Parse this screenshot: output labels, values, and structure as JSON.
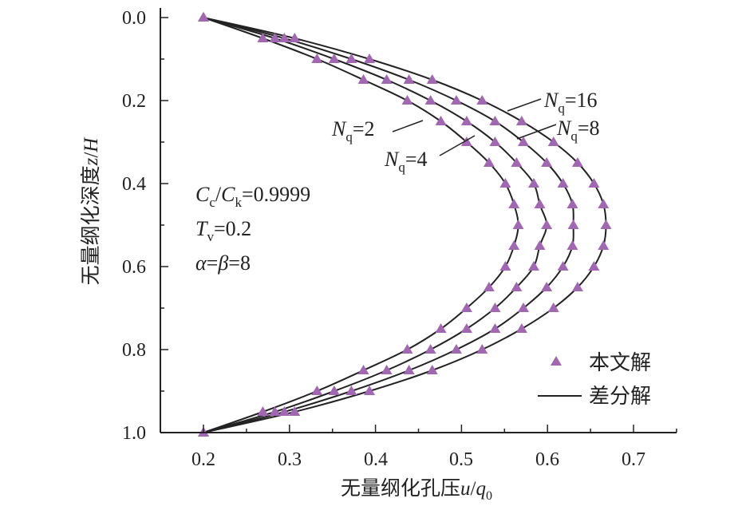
{
  "chart_data": {
    "type": "line",
    "xlabel": "无量纲化孔压u/q0",
    "xlabel_parts": {
      "main": "无量纲化孔压",
      "u": "u",
      "slash": "/",
      "q": "q",
      "sub": "0"
    },
    "ylabel": "无量纲化深度z/H",
    "ylabel_parts": {
      "main": "无量纲化深度",
      "z": "z",
      "slash": "/",
      "H": "H"
    },
    "xlim": [
      0.15,
      0.75
    ],
    "ylim": [
      0.0,
      1.0
    ],
    "y_inverted": true,
    "x_ticks": [
      "0.2",
      "0.3",
      "0.4",
      "0.5",
      "0.6",
      "0.7"
    ],
    "y_ticks": [
      "0.0",
      "0.2",
      "0.4",
      "0.6",
      "0.8",
      "1.0"
    ],
    "grid": false,
    "legend": {
      "position": "bottom-right",
      "entries": [
        {
          "label": "本文解",
          "marker": "triangle"
        },
        {
          "label": "差分解",
          "marker": "line"
        }
      ]
    },
    "z": [
      0,
      0.05,
      0.1,
      0.15,
      0.2,
      0.25,
      0.3,
      0.35,
      0.4,
      0.45,
      0.5,
      0.55,
      0.6,
      0.65,
      0.7,
      0.75,
      0.8,
      0.85,
      0.9,
      0.95,
      1.0
    ],
    "series": [
      {
        "name": "Nq=2",
        "label_main": "N",
        "label_sub": "q",
        "label_val": "=2",
        "values": [
          0.2,
          0.269,
          0.332,
          0.386,
          0.437,
          0.476,
          0.506,
          0.532,
          0.551,
          0.561,
          0.566,
          0.561,
          0.551,
          0.532,
          0.506,
          0.476,
          0.437,
          0.386,
          0.332,
          0.269,
          0.2
        ]
      },
      {
        "name": "Nq=4",
        "label_main": "N",
        "label_sub": "q",
        "label_val": "=4",
        "values": [
          0.2,
          0.283,
          0.352,
          0.413,
          0.464,
          0.506,
          0.539,
          0.564,
          0.584,
          0.591,
          0.599,
          0.591,
          0.584,
          0.564,
          0.539,
          0.506,
          0.464,
          0.413,
          0.352,
          0.283,
          0.2
        ]
      },
      {
        "name": "Nq=8",
        "label_main": "N",
        "label_sub": "q",
        "label_val": "=8",
        "values": [
          0.2,
          0.294,
          0.372,
          0.439,
          0.494,
          0.539,
          0.572,
          0.599,
          0.618,
          0.629,
          0.63,
          0.629,
          0.618,
          0.599,
          0.572,
          0.539,
          0.494,
          0.439,
          0.372,
          0.294,
          0.2
        ]
      },
      {
        "name": "Nq=16",
        "label_main": "N",
        "label_sub": "q",
        "label_val": "=16",
        "values": [
          0.2,
          0.306,
          0.393,
          0.466,
          0.524,
          0.57,
          0.607,
          0.635,
          0.654,
          0.665,
          0.668,
          0.665,
          0.654,
          0.635,
          0.607,
          0.57,
          0.524,
          0.466,
          0.393,
          0.306,
          0.2
        ]
      }
    ],
    "annotations": {
      "cc": {
        "C1": "C",
        "s1": "c",
        "slash": "/",
        "C2": "C",
        "s2": "k",
        "val": "=0.9999"
      },
      "tv": {
        "T": "T",
        "s": "v",
        "val": "=0.2"
      },
      "ab": {
        "a": "α",
        "eq": "=",
        "b": "β",
        "val": "=8"
      }
    },
    "colors": {
      "marker": "#a267b2",
      "line": "#222222"
    }
  }
}
